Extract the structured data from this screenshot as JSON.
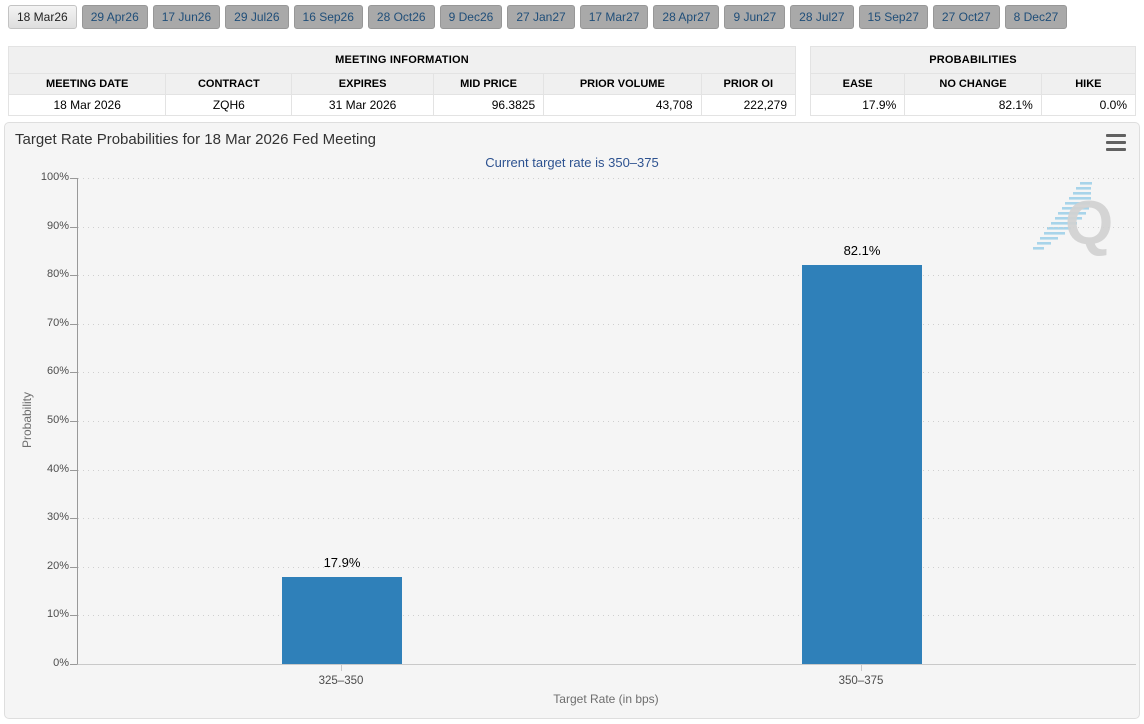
{
  "tabs": {
    "items": [
      {
        "label": "18 Mar26",
        "selected": true
      },
      {
        "label": "29 Apr26",
        "selected": false
      },
      {
        "label": "17 Jun26",
        "selected": false
      },
      {
        "label": "29 Jul26",
        "selected": false
      },
      {
        "label": "16 Sep26",
        "selected": false
      },
      {
        "label": "28 Oct26",
        "selected": false
      },
      {
        "label": "9 Dec26",
        "selected": false
      },
      {
        "label": "27 Jan27",
        "selected": false
      },
      {
        "label": "17 Mar27",
        "selected": false
      },
      {
        "label": "28 Apr27",
        "selected": false
      },
      {
        "label": "9 Jun27",
        "selected": false
      },
      {
        "label": "28 Jul27",
        "selected": false
      },
      {
        "label": "15 Sep27",
        "selected": false
      },
      {
        "label": "27 Oct27",
        "selected": false
      },
      {
        "label": "8 Dec27",
        "selected": false
      }
    ]
  },
  "meeting_info": {
    "title": "MEETING INFORMATION",
    "columns": [
      "MEETING DATE",
      "CONTRACT",
      "EXPIRES",
      "MID PRICE",
      "PRIOR VOLUME",
      "PRIOR OI"
    ],
    "row": {
      "meeting_date": "18 Mar 2026",
      "contract": "ZQH6",
      "expires": "31 Mar 2026",
      "mid_price": "96.3825",
      "prior_volume": "43,708",
      "prior_oi": "222,279"
    }
  },
  "probabilities": {
    "title": "PROBABILITIES",
    "columns": [
      "EASE",
      "NO CHANGE",
      "HIKE"
    ],
    "row": {
      "ease": "17.9%",
      "no_change": "82.1%",
      "hike": "0.0%"
    }
  },
  "chart": {
    "title": "Target Rate Probabilities for 18 Mar 2026 Fed Meeting",
    "subtitle": "Current target rate is 350–375",
    "yticks": [
      "100%",
      "90%",
      "80%",
      "70%",
      "60%",
      "50%",
      "40%",
      "30%",
      "20%",
      "10%",
      "0%"
    ],
    "watermark_letter": "Q"
  },
  "chart_data": {
    "type": "bar",
    "categories": [
      "325–350",
      "350–375"
    ],
    "values": [
      17.9,
      82.1
    ],
    "data_labels": [
      "17.9%",
      "82.1%"
    ],
    "title": "Target Rate Probabilities for 18 Mar 2026 Fed Meeting",
    "subtitle": "Current target rate is 350–375",
    "xlabel": "Target Rate (in bps)",
    "ylabel": "Probability",
    "ylim": [
      0,
      100
    ],
    "ytick_step": 10,
    "grid": "dotted horizontal",
    "legend": "none",
    "bar_color": "#2f80b9"
  },
  "colors": {
    "bar": "#2f80b9",
    "subtitle_text": "#2d5290",
    "tab_text": "#1f4e79",
    "panel_background": "#f5f5f5",
    "watermark_gray": "#d2d2d2",
    "watermark_blue": "#a8d4ea"
  }
}
